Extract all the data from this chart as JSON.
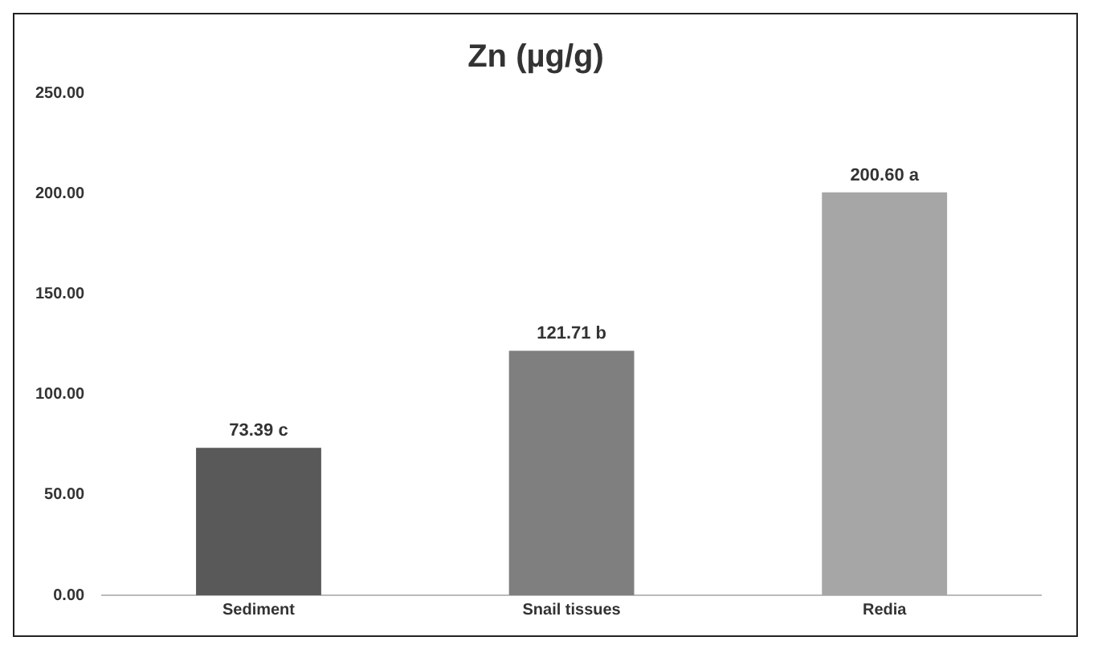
{
  "chart_data": {
    "type": "bar",
    "title": "Zn (µg/g)",
    "categories": [
      "Sediment",
      "Snail tissues",
      "Redia"
    ],
    "values": [
      73.39,
      121.71,
      200.6
    ],
    "colors": [
      "#595959",
      "#7f7f7f",
      "#a6a6a6"
    ],
    "value_labels": [
      "73.39 c",
      "121.71 b",
      "200.60 a"
    ],
    "ylim": [
      0,
      250
    ],
    "yticks": [
      {
        "value": 0,
        "label": "0.00"
      },
      {
        "value": 50,
        "label": "50.00"
      },
      {
        "value": 100,
        "label": "100.00"
      },
      {
        "value": 150,
        "label": "150.00"
      },
      {
        "value": 200,
        "label": "200.00"
      },
      {
        "value": 250,
        "label": "250.00"
      }
    ],
    "grid": false,
    "legend": false
  }
}
